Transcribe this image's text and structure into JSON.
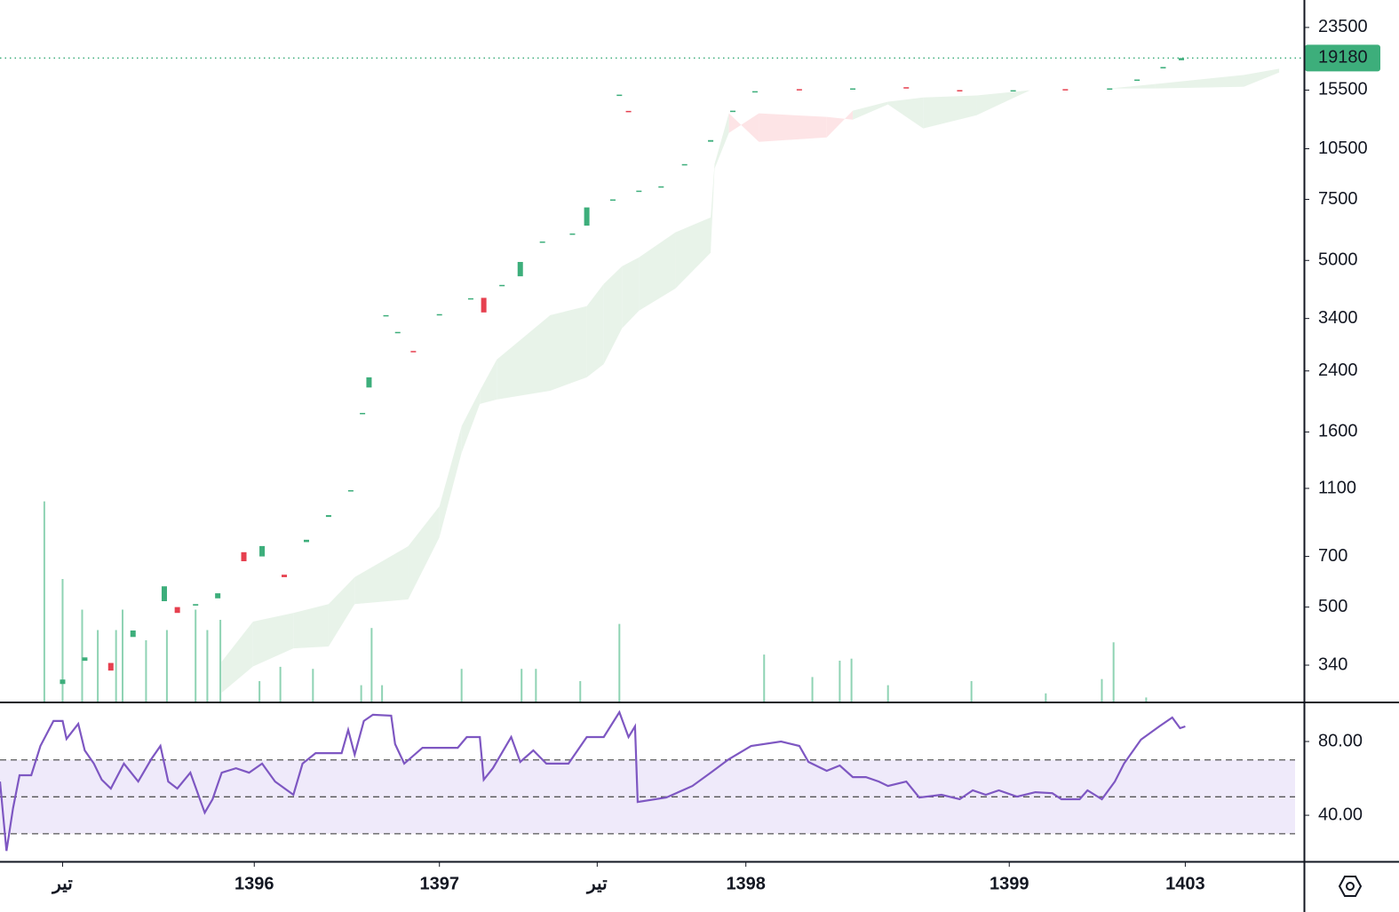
{
  "chart_data": [
    {
      "type": "candlestick",
      "x": [
        4.8,
        6.5,
        8.5,
        10.2,
        12.6,
        13.6,
        15.0,
        16.7,
        18.7,
        20.1,
        21.8,
        23.5,
        25.2,
        26.9,
        27.8,
        28.3,
        29.6,
        30.5,
        31.7,
        33.7,
        36.1,
        37.1,
        38.5,
        39.9,
        41.6,
        43.9,
        45.0,
        47.0,
        47.5,
        48.2,
        49.0,
        50.7,
        52.5,
        54.5,
        56.2,
        57.9,
        61.3,
        65.4,
        69.5,
        73.6,
        77.7,
        81.7,
        85.1,
        87.2,
        89.2,
        90.6
      ],
      "open": [
        300,
        350,
        345,
        410,
        520,
        500,
        505,
        530,
        720,
        700,
        620,
        770,
        910,
        1080,
        1800,
        2150,
        3450,
        3110,
        2740,
        3480,
        3880,
        3900,
        4230,
        4500,
        5650,
        5960,
        6300,
        7450,
        14950,
        13500,
        7900,
        8150,
        9400,
        11000,
        13400,
        15300,
        15600,
        15650,
        15800,
        15500,
        15480,
        15600,
        15650,
        16500,
        17900,
        18900
      ],
      "close": [
        309,
        358,
        328,
        428,
        574,
        481,
        510,
        548,
        678,
        750,
        610,
        782,
        921,
        1087,
        1816,
        2300,
        3477,
        3110,
        2730,
        3500,
        3890,
        3540,
        4250,
        4950,
        5670,
        5980,
        7110,
        7500,
        15040,
        13450,
        7950,
        8180,
        9480,
        11120,
        13520,
        15390,
        15590,
        15680,
        15780,
        15490,
        15490,
        15590,
        15680,
        16630,
        18070,
        19180
      ],
      "up_color": "#3dae7b",
      "down_color": "#e6404f",
      "xlim": [
        0,
        100
      ],
      "ylim": [
        267,
        28200
      ],
      "log_scale": true,
      "yticks": [
        340,
        500,
        700,
        1100,
        1600,
        2400,
        3400,
        5000,
        7500,
        10500,
        15500,
        23500
      ],
      "last_price": 19180,
      "last_price_color": "#3dae7b",
      "cloud": {
        "x": [
          17.0,
          19.4,
          22.5,
          25.2,
          27.2,
          31.3,
          33.7,
          35.4,
          36.8,
          38.1,
          42.2,
          45.0,
          46.3,
          47.7,
          49.0,
          51.8,
          54.5,
          54.8,
          55.9,
          58.2,
          63.4,
          65.4,
          68.1,
          70.8,
          74.9,
          79.0,
          85.1,
          88.6,
          95.4,
          98.1
        ],
        "span_a": [
          348,
          454,
          481,
          510,
          610,
          749,
          977,
          1663,
          2105,
          2588,
          3477,
          3690,
          4276,
          4810,
          5100,
          6026,
          6653,
          9484,
          13280,
          10990,
          11320,
          13520,
          14350,
          14760,
          14960,
          15490,
          15670,
          16140,
          17140,
          17860
        ],
        "span_b": [
          283,
          337,
          380,
          385,
          510,
          526,
          795,
          1393,
          1928,
          1985,
          2105,
          2300,
          2512,
          3184,
          3581,
          4150,
          5260,
          9204,
          11670,
          13280,
          12970,
          12740,
          14090,
          12020,
          13120,
          15490,
          15670,
          15670,
          15850,
          17420
        ],
        "up_color": "#e8f3e9",
        "down_color": "#fde4e6"
      },
      "volume": {
        "x": [
          3.4,
          4.8,
          6.3,
          7.5,
          8.9,
          9.4,
          11.2,
          12.8,
          15.0,
          15.9,
          16.9,
          19.9,
          21.5,
          24.0,
          27.7,
          28.5,
          29.3,
          35.4,
          40.0,
          41.1,
          44.5,
          47.5,
          58.6,
          62.3,
          64.4,
          65.3,
          68.1,
          74.5,
          80.2,
          84.5,
          85.4,
          87.9
        ],
        "values": [
          98,
          60,
          45,
          35,
          35,
          45,
          30,
          35,
          45,
          35,
          40,
          10,
          17,
          16,
          8,
          36,
          8,
          16,
          16,
          16,
          10,
          38,
          23,
          12,
          20,
          21,
          8,
          10,
          4,
          11,
          29,
          2
        ],
        "ylim": [
          0,
          100
        ],
        "color": "#8fd3b4"
      }
    },
    {
      "type": "line",
      "x": [
        0,
        0.5,
        1.0,
        1.5,
        2.4,
        3.1,
        4.1,
        4.8,
        5.1,
        6.0,
        6.5,
        7.2,
        7.8,
        8.5,
        9.5,
        10.6,
        11.6,
        12.3,
        12.9,
        13.6,
        14.6,
        15.7,
        16.3,
        17.0,
        18.1,
        19.1,
        20.1,
        21.1,
        22.5,
        23.2,
        24.2,
        26.2,
        26.7,
        27.2,
        27.9,
        28.6,
        30.0,
        30.3,
        31.0,
        32.4,
        35.1,
        35.8,
        36.8,
        37.1,
        37.8,
        39.2,
        39.9,
        40.9,
        41.9,
        43.6,
        45.0,
        46.3,
        47.5,
        48.2,
        48.7,
        48.9,
        51.1,
        53.1,
        54.5,
        55.9,
        57.6,
        59.9,
        61.3,
        62.0,
        63.4,
        64.4,
        65.4,
        66.4,
        67.4,
        68.1,
        69.5,
        70.5,
        72.2,
        73.6,
        74.6,
        75.6,
        76.6,
        78.0,
        79.4,
        80.7,
        81.4,
        82.8,
        83.4,
        84.5,
        85.5,
        86.2,
        87.5,
        88.9,
        89.9,
        90.5,
        90.9
      ],
      "values": [
        58.3,
        20.7,
        43.9,
        61.7,
        61.7,
        77.6,
        91.1,
        91.1,
        81.4,
        89.6,
        75.2,
        68.0,
        59.3,
        54.5,
        68.0,
        58.3,
        70.4,
        77.6,
        58.3,
        54.5,
        63.1,
        41.4,
        48.7,
        63.1,
        65.5,
        63.1,
        68.0,
        58.3,
        51.1,
        68.0,
        73.7,
        73.7,
        86.3,
        72.8,
        91.1,
        94.5,
        94.0,
        78.6,
        68.0,
        76.6,
        76.6,
        82.4,
        82.4,
        59.3,
        65.5,
        82.4,
        68.9,
        75.2,
        68.0,
        68.0,
        82.4,
        82.4,
        95.9,
        82.4,
        88.2,
        47.2,
        49.6,
        55.9,
        63.1,
        70.4,
        77.6,
        80,
        77.6,
        68.9,
        64.1,
        67.0,
        60.7,
        60.7,
        58.3,
        55.9,
        58.3,
        49.6,
        51.1,
        48.7,
        53.5,
        51.1,
        53.5,
        50.1,
        52.5,
        52.0,
        48.7,
        48.7,
        53.5,
        48.7,
        58.3,
        68.0,
        81.0,
        88.2,
        93.0,
        87.2,
        88.2
      ],
      "color": "#7e57c2",
      "xlim": [
        0,
        100
      ],
      "ylim": [
        15,
        100.7
      ],
      "yticks": [
        {
          "value": 80,
          "label": "80.00"
        },
        {
          "value": 40,
          "label": "40.00"
        }
      ],
      "bands": [
        30,
        50,
        70
      ],
      "band_color": "#efeafa",
      "xticks": [
        {
          "value": 4.8,
          "label": "تیر"
        },
        {
          "value": 19.5,
          "label": "1396"
        },
        {
          "value": 33.7,
          "label": "1397"
        },
        {
          "value": 45.8,
          "label": "تیر"
        },
        {
          "value": 57.2,
          "label": "1398"
        },
        {
          "value": 77.4,
          "label": "1399"
        },
        {
          "value": 90.9,
          "label": "1403"
        }
      ]
    }
  ]
}
